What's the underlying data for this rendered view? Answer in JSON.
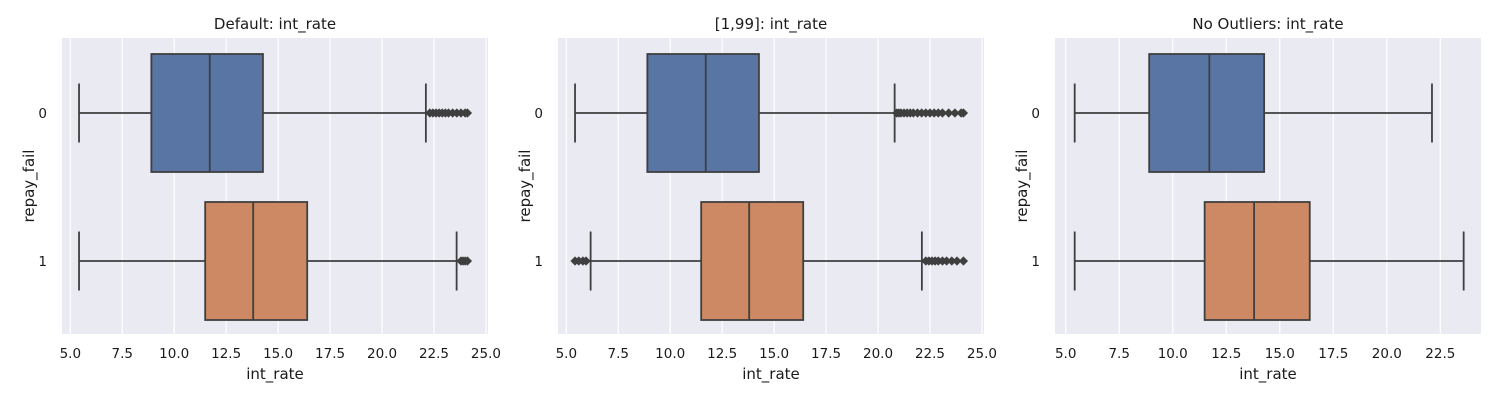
{
  "colors": {
    "background": "#eaeaf2",
    "grid": "#ffffff",
    "line": "#3f3f3f",
    "series_0": "#5875a4",
    "series_1": "#cc8963"
  },
  "chart_data": [
    {
      "type": "boxplot",
      "orientation": "horizontal",
      "title": "Default: int_rate",
      "xlabel": "int_rate",
      "ylabel": "repay_fail",
      "xlim": [
        4.6,
        25.1
      ],
      "xticks": [
        5.0,
        7.5,
        10.0,
        12.5,
        15.0,
        17.5,
        20.0,
        22.5,
        25.0
      ],
      "xtick_labels": [
        "5.0",
        "7.5",
        "10.0",
        "12.5",
        "15.0",
        "17.5",
        "20.0",
        "22.5",
        "25.0"
      ],
      "categories": [
        "0",
        "1"
      ],
      "grid": true,
      "boxes": [
        {
          "category": "0",
          "whisker_low": 5.42,
          "q1": 8.9,
          "median": 11.71,
          "q3": 14.27,
          "whisker_high": 22.11,
          "outliers": [
            22.3,
            22.45,
            22.6,
            22.75,
            22.9,
            23.05,
            23.2,
            23.4,
            23.6,
            23.8,
            24.0,
            24.11
          ]
        },
        {
          "category": "1",
          "whisker_low": 5.42,
          "q1": 11.49,
          "median": 13.8,
          "q3": 16.4,
          "whisker_high": 23.59,
          "outliers": [
            23.8,
            23.9,
            24.0,
            24.11
          ]
        }
      ]
    },
    {
      "type": "boxplot",
      "orientation": "horizontal",
      "title": "[1,99]: int_rate",
      "xlabel": "int_rate",
      "ylabel": "repay_fail",
      "xlim": [
        4.6,
        25.1
      ],
      "xticks": [
        5.0,
        7.5,
        10.0,
        12.5,
        15.0,
        17.5,
        20.0,
        22.5,
        25.0
      ],
      "xtick_labels": [
        "5.0",
        "7.5",
        "10.0",
        "12.5",
        "15.0",
        "17.5",
        "20.0",
        "22.5",
        "25.0"
      ],
      "categories": [
        "0",
        "1"
      ],
      "grid": true,
      "boxes": [
        {
          "category": "0",
          "whisker_low": 5.42,
          "q1": 8.9,
          "median": 11.71,
          "q3": 14.27,
          "whisker_high": 20.8,
          "outliers": [
            20.9,
            21.0,
            21.1,
            21.25,
            21.4,
            21.55,
            21.7,
            21.9,
            22.1,
            22.3,
            22.5,
            22.7,
            22.9,
            23.1,
            23.4,
            23.7,
            24.0,
            24.11
          ]
        },
        {
          "category": "1",
          "whisker_low": 6.17,
          "q1": 11.49,
          "median": 13.8,
          "q3": 16.4,
          "whisker_high": 22.11,
          "outliers": [
            5.42,
            5.6,
            5.8,
            5.95,
            22.3,
            22.45,
            22.6,
            22.75,
            22.9,
            23.1,
            23.3,
            23.55,
            23.8,
            24.11
          ]
        }
      ]
    },
    {
      "type": "boxplot",
      "orientation": "horizontal",
      "title": "No Outliers: int_rate",
      "xlabel": "int_rate",
      "ylabel": "repay_fail",
      "xlim": [
        4.5,
        24.4
      ],
      "xticks": [
        5.0,
        7.5,
        10.0,
        12.5,
        15.0,
        17.5,
        20.0,
        22.5
      ],
      "xtick_labels": [
        "5.0",
        "7.5",
        "10.0",
        "12.5",
        "15.0",
        "17.5",
        "20.0",
        "22.5"
      ],
      "categories": [
        "0",
        "1"
      ],
      "grid": true,
      "boxes": [
        {
          "category": "0",
          "whisker_low": 5.42,
          "q1": 8.9,
          "median": 11.71,
          "q3": 14.27,
          "whisker_high": 22.11,
          "outliers": []
        },
        {
          "category": "1",
          "whisker_low": 5.42,
          "q1": 11.49,
          "median": 13.8,
          "q3": 16.4,
          "whisker_high": 23.59,
          "outliers": []
        }
      ]
    }
  ]
}
